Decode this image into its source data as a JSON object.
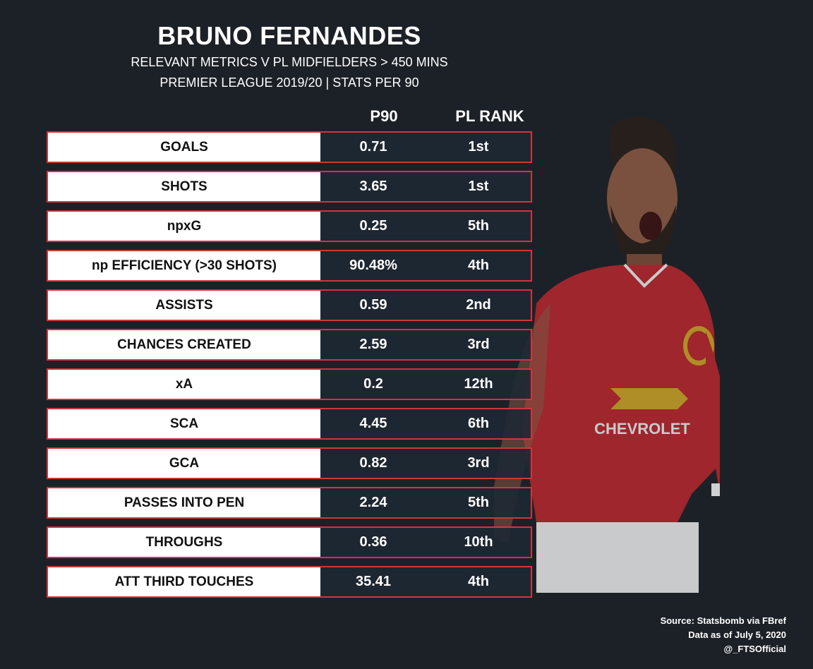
{
  "header": {
    "title": "BRUNO FERNANDES",
    "subtitle_1": "RELEVANT METRICS V PL MIDFIELDERS > 450 MINS",
    "subtitle_2": "PREMIER LEAGUE 2019/20 | STATS PER 90"
  },
  "columns": {
    "p90": "P90",
    "rank": "PL RANK"
  },
  "colors": {
    "background": "#1c2127",
    "row_border": "#d2343e",
    "metric_cell": "#ffffff",
    "shirt_red": "#b5282d",
    "shirt_text": "CHEVROLET"
  },
  "chart_data": {
    "type": "table",
    "title": "BRUNO FERNANDES",
    "columns": [
      "",
      "P90",
      "PL RANK"
    ],
    "rows": [
      {
        "metric": "GOALS",
        "p90": "0.71",
        "rank": "1st"
      },
      {
        "metric": "SHOTS",
        "p90": "3.65",
        "rank": "1st"
      },
      {
        "metric": "npxG",
        "p90": "0.25",
        "rank": "5th"
      },
      {
        "metric": "np EFFICIENCY (>30 SHOTS)",
        "p90": "90.48%",
        "rank": "4th"
      },
      {
        "metric": "ASSISTS",
        "p90": "0.59",
        "rank": "2nd"
      },
      {
        "metric": "CHANCES CREATED",
        "p90": "2.59",
        "rank": "3rd"
      },
      {
        "metric": "xA",
        "p90": "0.2",
        "rank": "12th"
      },
      {
        "metric": "SCA",
        "p90": "4.45",
        "rank": "6th"
      },
      {
        "metric": "GCA",
        "p90": "0.82",
        "rank": "3rd"
      },
      {
        "metric": "PASSES INTO PEN",
        "p90": "2.24",
        "rank": "5th"
      },
      {
        "metric": "THROUGHS",
        "p90": "0.36",
        "rank": "10th"
      },
      {
        "metric": "ATT THIRD TOUCHES",
        "p90": "35.41",
        "rank": "4th"
      }
    ]
  },
  "footer": {
    "source": "Source: Statsbomb via FBref",
    "date": "Data as of July 5, 2020",
    "handle": "@_FTSOfficial"
  }
}
